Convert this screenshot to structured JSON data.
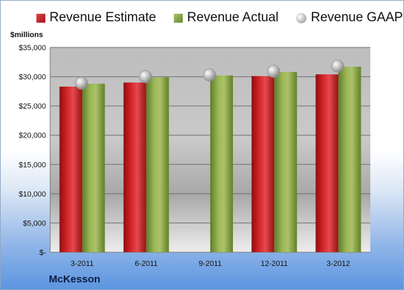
{
  "chart_data": {
    "type": "bar",
    "ylabel": "$millions",
    "ylim": [
      0,
      35000
    ],
    "yticks": [
      {
        "value": 0,
        "label": "$-"
      },
      {
        "value": 5000,
        "label": "$5,000"
      },
      {
        "value": 10000,
        "label": "$10,000"
      },
      {
        "value": 15000,
        "label": "$15,000"
      },
      {
        "value": 20000,
        "label": "$20,000"
      },
      {
        "value": 25000,
        "label": "$25,000"
      },
      {
        "value": 30000,
        "label": "$30,000"
      },
      {
        "value": 35000,
        "label": "$35,000"
      }
    ],
    "categories": [
      "3-2011",
      "6-2011",
      "9-2011",
      "12-2011",
      "3-2012"
    ],
    "series": [
      {
        "name": "Revenue Estimate",
        "type": "bar",
        "color": "#c0191f",
        "values": [
          28300,
          29000,
          null,
          30100,
          30400
        ]
      },
      {
        "name": "Revenue Actual",
        "type": "bar",
        "color": "#8aa748",
        "values": [
          28800,
          29900,
          30200,
          30800,
          31700
        ]
      },
      {
        "name": "Revenue GAAP",
        "type": "marker",
        "color": "#b8b8b8",
        "values": [
          28900,
          30000,
          30300,
          30900,
          31800
        ]
      }
    ],
    "grid": true,
    "legend": "top",
    "caption": "McKesson"
  }
}
